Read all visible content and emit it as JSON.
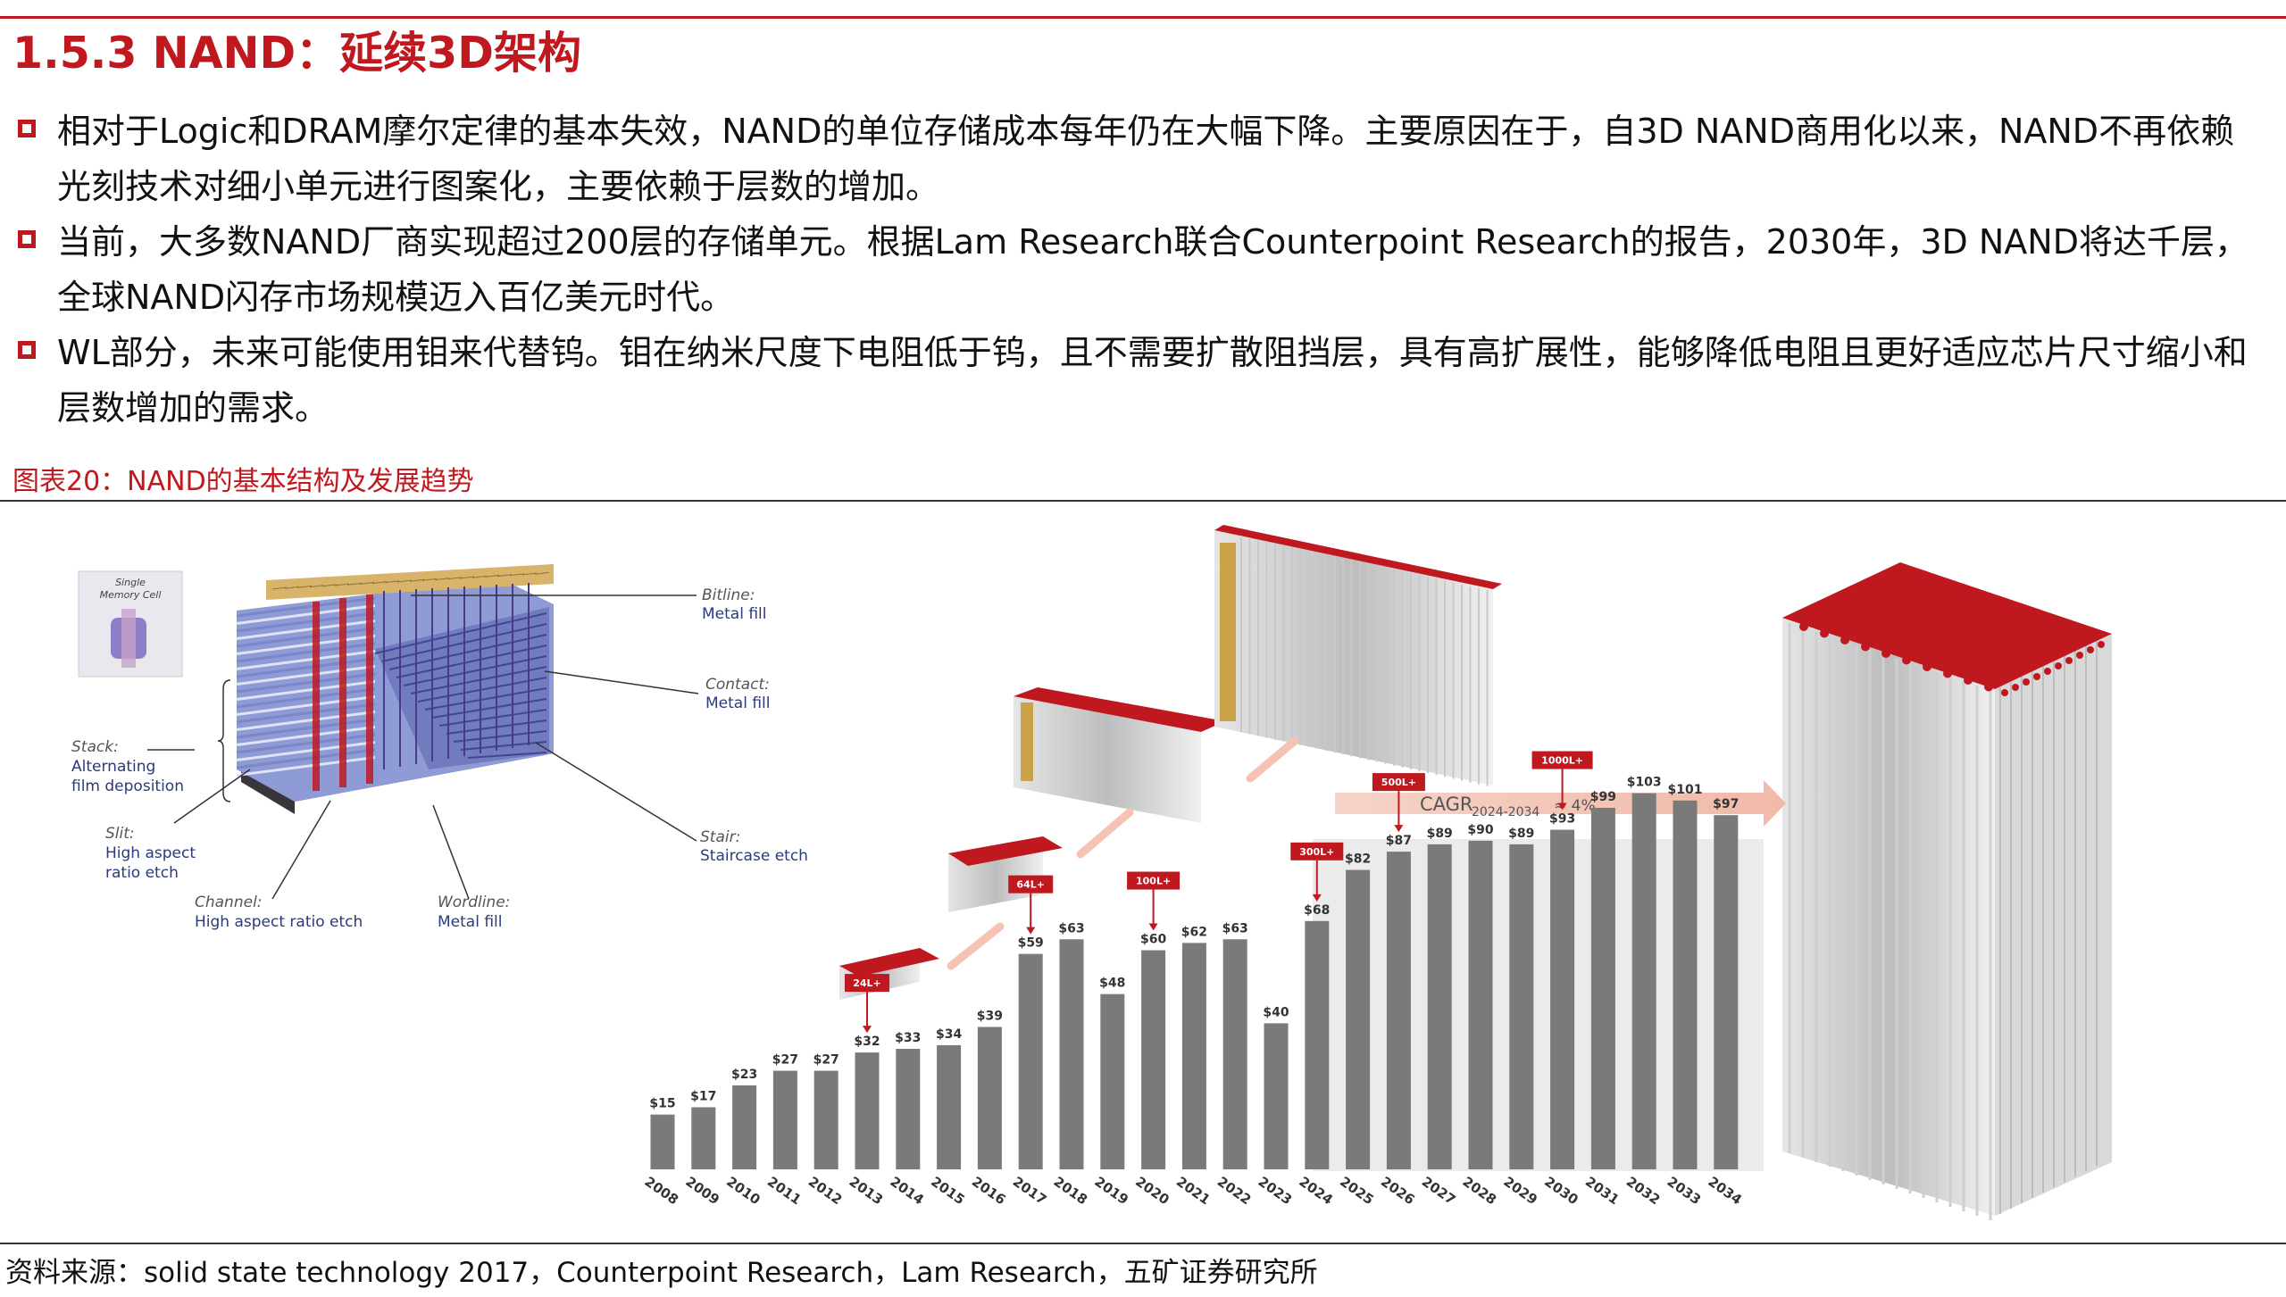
{
  "header": {
    "title": "1.5.3 NAND：延续3D架构"
  },
  "bullets": [
    "相对于Logic和DRAM摩尔定律的基本失效，NAND的单位存储成本每年仍在大幅下降。主要原因在于，自3D NAND商用化以来，NAND不再依赖光刻技术对细小单元进行图案化，主要依赖于层数的增加。",
    "当前，大多数NAND厂商实现超过200层的存储单元。根据Lam Research联合Counterpoint Research的报告，2030年，3D NAND将达千层，全球NAND闪存市场规模迈入百亿美元时代。",
    "WL部分，未来可能使用钼来代替钨。钼在纳米尺度下电阻低于钨，且不需要扩散阻挡层，具有高扩展性，能够降低电阻且更好适应芯片尺寸缩小和层数增加的需求。"
  ],
  "figure": {
    "caption": "图表20：NAND的基本结构及发展趋势",
    "diagram_labels": {
      "single_cell": [
        "Single",
        "Memory Cell"
      ],
      "bitline": [
        "Bitline:",
        "Metal fill"
      ],
      "contact": [
        "Contact:",
        "Metal fill"
      ],
      "stack": [
        "Stack:",
        "Alternating",
        "film deposition"
      ],
      "slit": [
        "Slit:",
        "High aspect",
        "ratio etch"
      ],
      "channel": [
        "Channel:",
        "High aspect ratio etch"
      ],
      "wordline": [
        "Wordline:",
        "Metal fill"
      ],
      "stair": [
        "Stair:",
        "Staircase etch"
      ]
    }
  },
  "chart_data": {
    "type": "bar",
    "categories": [
      "2008",
      "2009",
      "2010",
      "2011",
      "2012",
      "2013",
      "2014",
      "2015",
      "2016",
      "2017",
      "2018",
      "2019",
      "2020",
      "2021",
      "2022",
      "2023",
      "2024",
      "2025",
      "2026",
      "2027",
      "2028",
      "2029",
      "2030",
      "2031",
      "2032",
      "2033",
      "2034"
    ],
    "values": [
      15,
      17,
      23,
      27,
      27,
      32,
      33,
      34,
      39,
      59,
      63,
      48,
      60,
      62,
      63,
      40,
      68,
      82,
      87,
      89,
      90,
      89,
      93,
      99,
      103,
      101,
      97
    ],
    "value_labels": [
      "$15",
      "$17",
      "$23",
      "$27",
      "$27",
      "$32",
      "$33",
      "$34",
      "$39",
      "$59",
      "$63",
      "$48",
      "$60",
      "$62",
      "$63",
      "$40",
      "$68",
      "$82",
      "$87",
      "$89",
      "$90",
      "$89",
      "$93",
      "$99",
      "$103",
      "$101",
      "$97"
    ],
    "milestones": [
      {
        "label": "24L+",
        "year": "2013"
      },
      {
        "label": "64L+",
        "year": "2017"
      },
      {
        "label": "100L+",
        "year": "2020"
      },
      {
        "label": "300L+",
        "year": "2024"
      },
      {
        "label": "500L+",
        "year": "2026"
      },
      {
        "label": "1000L+",
        "year": "2030"
      }
    ],
    "cagr_label": "CAGR",
    "cagr_period": "2024-2034",
    "cagr_value": "≈ 4%",
    "ylim": [
      0,
      110
    ],
    "colors": {
      "bar": "#7a7a7a",
      "forecast_bg": "#ececec",
      "milestone": "#c0181f"
    }
  },
  "footer": {
    "source": "资料来源：solid state technology 2017，Counterpoint Research，Lam Research，五矿证券研究所"
  }
}
